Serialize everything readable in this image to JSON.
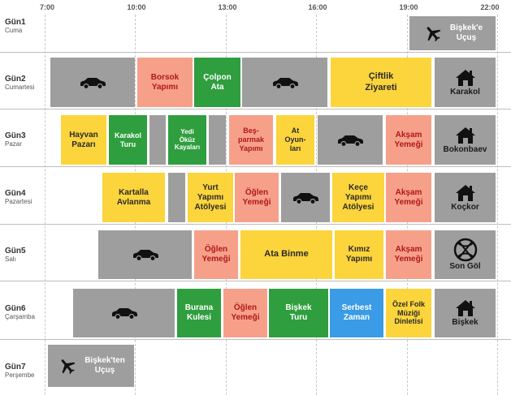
{
  "hours": [
    "7:00",
    "10:00",
    "13:00",
    "16:00",
    "19:00",
    "22:00"
  ],
  "days": [
    {
      "name": "Gün1",
      "sub": "Cuma"
    },
    {
      "name": "Gün2",
      "sub": "Cumartesi"
    },
    {
      "name": "Gün3",
      "sub": "Pazar"
    },
    {
      "name": "Gün4",
      "sub": "Pazartesi"
    },
    {
      "name": "Gün5",
      "sub": "Salı"
    },
    {
      "name": "Gün6",
      "sub": "Çarşamba"
    },
    {
      "name": "Gün7",
      "sub": "Perşembe"
    }
  ],
  "icons": {
    "drive": "car-icon",
    "flight": "airplane-icon",
    "stay": "house-icon",
    "lake": "lake-emblem-icon"
  },
  "colors": {
    "drive": "#9e9e9e",
    "meal": "#f6a08a",
    "meal_text": "#b01818",
    "visit": "#2f9e3e",
    "activity": "#fcd43c",
    "free": "#3a9be6"
  },
  "schedule": {
    "day1": {
      "flight": "Bişkek'e\nUçuş"
    },
    "day2": {
      "borsok": "Borsok\nYapımı",
      "colpon_ata": "Çolpon\nAta",
      "ciftlik": "Çiftlik\nZiyareti",
      "stay": "Karakol"
    },
    "day3": {
      "hayvan_pazari": "Hayvan\nPazarı",
      "karakol_turu": "Karakol\nTuru",
      "yedi_okuz": "Yedi\nÖküz\nKayaları",
      "besparmak": "Beş-\nparmak\nYapımı",
      "at_oyunlari": "At\nOyun-\nları",
      "aksam": "Akşam\nYemeği",
      "stay": "Bokonbaev"
    },
    "day4": {
      "kartalla": "Kartalla\nAvlanma",
      "yurt": "Yurt\nYapımı\nAtölyesi",
      "oglen": "Öğlen\nYemeği",
      "kece": "Keçe\nYapımı\nAtölyesi",
      "aksam": "Akşam\nYemeği",
      "stay": "Koçkor"
    },
    "day5": {
      "oglen": "Öğlen\nYemeği",
      "ata_binme": "Ata Binme",
      "kimiz": "Kımız\nYapımı",
      "aksam": "Akşam\nYemeği",
      "stay": "Son Göl"
    },
    "day6": {
      "burana": "Burana\nKulesi",
      "oglen": "Öğlen\nYemeği",
      "biskek_turu": "Bişkek\nTuru",
      "serbest": "Serbest\nZaman",
      "ozel_folk": "Özel Folk\nMüziği\nDinletisi",
      "stay": "Bişkek"
    },
    "day7": {
      "flight": "Bişkek'ten\nUçuş"
    }
  }
}
